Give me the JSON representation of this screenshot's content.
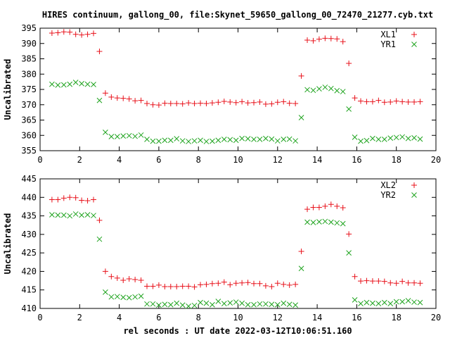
{
  "figure": {
    "title": "HIRES continuum, gallong_00, file:Skynet_59650_gallong_00_72470_21277.cyb.txt",
    "xlabel": "rel seconds : UT date 2022-03-12T10:06:51.160"
  },
  "colors": {
    "red": "#e8111a",
    "green": "#1ea31e"
  },
  "chart_data": [
    {
      "type": "scatter",
      "ylabel": "Uncalibrated",
      "xlim": [
        0,
        20
      ],
      "ylim": [
        355,
        395
      ],
      "xticks": [
        0,
        2,
        4,
        6,
        8,
        10,
        12,
        14,
        16,
        18,
        20
      ],
      "yticks": [
        355,
        360,
        365,
        370,
        375,
        380,
        385,
        390,
        395
      ],
      "legend_position": "top-right",
      "series": [
        {
          "name": "XL1",
          "marker": "plus",
          "color": "#e8111a",
          "x": [
            0.6,
            0.9,
            1.2,
            1.5,
            1.8,
            2.1,
            2.4,
            2.7,
            3.0,
            3.3,
            3.6,
            3.9,
            4.2,
            4.5,
            4.8,
            5.1,
            5.4,
            5.7,
            6.0,
            6.3,
            6.6,
            6.9,
            7.2,
            7.5,
            7.8,
            8.1,
            8.4,
            8.7,
            9.0,
            9.3,
            9.6,
            9.9,
            10.2,
            10.5,
            10.8,
            11.1,
            11.4,
            11.7,
            12.0,
            12.3,
            12.6,
            12.9,
            13.2,
            13.5,
            13.8,
            14.1,
            14.4,
            14.7,
            15.0,
            15.3,
            15.6,
            15.9,
            16.2,
            16.5,
            16.8,
            17.1,
            17.4,
            17.7,
            18.0,
            18.3,
            18.6,
            18.9,
            19.2
          ],
          "y": [
            393.4,
            393.5,
            393.8,
            393.7,
            393.0,
            392.8,
            393.0,
            393.3,
            387.4,
            373.8,
            372.5,
            372.2,
            372.1,
            371.9,
            371.3,
            371.4,
            370.4,
            370.0,
            369.9,
            370.5,
            370.4,
            370.4,
            370.3,
            370.6,
            370.4,
            370.5,
            370.4,
            370.6,
            370.8,
            371.1,
            370.9,
            370.7,
            371.0,
            370.6,
            370.7,
            370.9,
            370.2,
            370.3,
            370.8,
            371.0,
            370.5,
            370.4,
            379.4,
            391.1,
            390.9,
            391.4,
            391.7,
            391.6,
            391.5,
            390.6,
            383.5,
            372.2,
            371.2,
            371.0,
            371.0,
            371.4,
            370.8,
            370.9,
            371.2,
            371.0,
            370.9,
            370.9,
            371.0
          ]
        },
        {
          "name": "YR1",
          "marker": "cross",
          "color": "#1ea31e",
          "x": [
            0.6,
            0.9,
            1.2,
            1.5,
            1.8,
            2.1,
            2.4,
            2.7,
            3.0,
            3.3,
            3.6,
            3.9,
            4.2,
            4.5,
            4.8,
            5.1,
            5.4,
            5.7,
            6.0,
            6.3,
            6.6,
            6.9,
            7.2,
            7.5,
            7.8,
            8.1,
            8.4,
            8.7,
            9.0,
            9.3,
            9.6,
            9.9,
            10.2,
            10.5,
            10.8,
            11.1,
            11.4,
            11.7,
            12.0,
            12.3,
            12.6,
            12.9,
            13.2,
            13.5,
            13.8,
            14.1,
            14.4,
            14.7,
            15.0,
            15.3,
            15.6,
            15.9,
            16.2,
            16.5,
            16.8,
            17.1,
            17.4,
            17.7,
            18.0,
            18.3,
            18.6,
            18.9,
            19.2
          ],
          "y": [
            376.7,
            376.4,
            376.5,
            376.7,
            377.3,
            376.9,
            376.7,
            376.6,
            371.4,
            361.0,
            359.6,
            359.6,
            359.8,
            359.9,
            359.7,
            360.1,
            358.7,
            358.1,
            358.1,
            358.4,
            358.4,
            358.9,
            358.2,
            358.0,
            358.2,
            358.4,
            358.0,
            358.1,
            358.4,
            358.7,
            358.6,
            358.4,
            359.0,
            358.9,
            358.7,
            358.7,
            359.0,
            358.8,
            358.2,
            358.7,
            358.8,
            358.2,
            365.8,
            374.9,
            374.7,
            375.2,
            375.7,
            375.3,
            374.6,
            374.3,
            368.6,
            359.4,
            358.1,
            358.3,
            359.0,
            358.7,
            358.7,
            359.1,
            359.3,
            359.5,
            359.0,
            359.2,
            358.8
          ]
        }
      ]
    },
    {
      "type": "scatter",
      "ylabel": "Uncalibrated",
      "xlim": [
        0,
        20
      ],
      "ylim": [
        410,
        445
      ],
      "xticks": [
        0,
        2,
        4,
        6,
        8,
        10,
        12,
        14,
        16,
        18,
        20
      ],
      "yticks": [
        410,
        415,
        420,
        425,
        430,
        435,
        440,
        445
      ],
      "legend_position": "top-right",
      "series": [
        {
          "name": "XL2",
          "marker": "plus",
          "color": "#e8111a",
          "x": [
            0.6,
            0.9,
            1.2,
            1.5,
            1.8,
            2.1,
            2.4,
            2.7,
            3.0,
            3.3,
            3.6,
            3.9,
            4.2,
            4.5,
            4.8,
            5.1,
            5.4,
            5.7,
            6.0,
            6.3,
            6.6,
            6.9,
            7.2,
            7.5,
            7.8,
            8.1,
            8.4,
            8.7,
            9.0,
            9.3,
            9.6,
            9.9,
            10.2,
            10.5,
            10.8,
            11.1,
            11.4,
            11.7,
            12.0,
            12.3,
            12.6,
            12.9,
            13.2,
            13.5,
            13.8,
            14.1,
            14.4,
            14.7,
            15.0,
            15.3,
            15.6,
            15.9,
            16.2,
            16.5,
            16.8,
            17.1,
            17.4,
            17.7,
            18.0,
            18.3,
            18.6,
            18.9,
            19.2
          ],
          "y": [
            439.4,
            439.4,
            439.8,
            440.0,
            439.9,
            439.2,
            439.1,
            439.4,
            433.8,
            420.0,
            418.6,
            418.2,
            417.6,
            418.0,
            417.8,
            417.6,
            416.0,
            416.0,
            416.3,
            415.9,
            415.9,
            415.9,
            416.0,
            416.0,
            415.8,
            416.4,
            416.5,
            416.7,
            416.8,
            417.1,
            416.4,
            416.8,
            416.9,
            417.0,
            416.7,
            416.7,
            416.1,
            415.9,
            416.8,
            416.5,
            416.3,
            416.5,
            425.4,
            436.8,
            437.3,
            437.3,
            437.6,
            438.1,
            437.6,
            437.2,
            430.1,
            418.6,
            417.4,
            417.5,
            417.4,
            417.4,
            417.3,
            416.9,
            416.8,
            417.3,
            416.9,
            416.9,
            416.8
          ]
        },
        {
          "name": "YR2",
          "marker": "cross",
          "color": "#1ea31e",
          "x": [
            0.6,
            0.9,
            1.2,
            1.5,
            1.8,
            2.1,
            2.4,
            2.7,
            3.0,
            3.3,
            3.6,
            3.9,
            4.2,
            4.5,
            4.8,
            5.1,
            5.4,
            5.7,
            6.0,
            6.3,
            6.6,
            6.9,
            7.2,
            7.5,
            7.8,
            8.1,
            8.4,
            8.7,
            9.0,
            9.3,
            9.6,
            9.9,
            10.2,
            10.5,
            10.8,
            11.1,
            11.4,
            11.7,
            12.0,
            12.3,
            12.6,
            12.9,
            13.2,
            13.5,
            13.8,
            14.1,
            14.4,
            14.7,
            15.0,
            15.3,
            15.6,
            15.9,
            16.2,
            16.5,
            16.8,
            17.1,
            17.4,
            17.7,
            18.0,
            18.3,
            18.6,
            18.9,
            19.2
          ],
          "y": [
            435.3,
            435.2,
            435.2,
            435.0,
            435.5,
            435.2,
            435.3,
            435.1,
            428.7,
            414.4,
            413.1,
            413.2,
            413.0,
            412.9,
            413.1,
            413.3,
            411.2,
            411.2,
            410.9,
            411.1,
            411.0,
            411.4,
            410.9,
            410.6,
            410.8,
            411.6,
            411.4,
            411.0,
            411.9,
            411.3,
            411.5,
            411.7,
            411.4,
            411.0,
            411.0,
            411.2,
            411.2,
            411.1,
            411.0,
            411.4,
            411.1,
            410.9,
            420.8,
            433.3,
            433.2,
            433.4,
            433.5,
            433.3,
            433.1,
            432.9,
            425.0,
            412.3,
            411.3,
            411.6,
            411.4,
            411.3,
            411.6,
            411.3,
            411.8,
            411.8,
            412.1,
            411.7,
            411.6
          ]
        }
      ]
    }
  ]
}
